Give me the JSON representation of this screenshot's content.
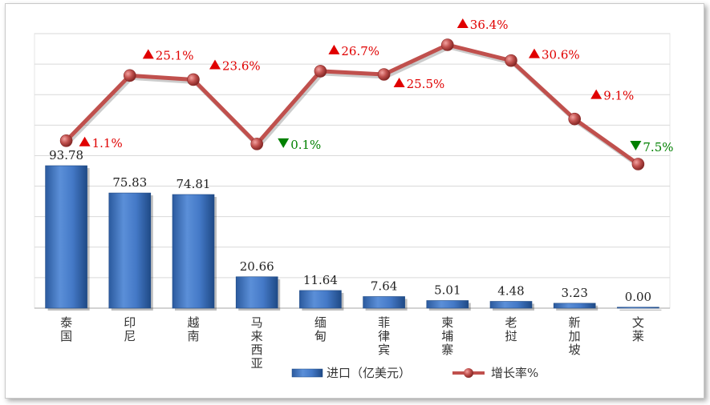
{
  "chart_data": {
    "type": "bar+line",
    "categories": [
      "泰国",
      "印尼",
      "越南",
      "马来西亚",
      "缅甸",
      "菲律宾",
      "柬埔寨",
      "老挝",
      "新加坡",
      "文莱"
    ],
    "series": [
      {
        "name": "进口（亿美元）",
        "type": "bar",
        "values": [
          93.78,
          75.83,
          74.81,
          20.66,
          11.64,
          7.64,
          5.01,
          4.48,
          3.23,
          0.0
        ],
        "labels": [
          "93.78",
          "75.83",
          "74.81",
          "20.66",
          "11.64",
          "7.64",
          "5.01",
          "4.48",
          "3.23",
          "0.00"
        ]
      },
      {
        "name": "增长率%",
        "type": "line",
        "values": [
          1.1,
          25.1,
          23.6,
          -0.1,
          26.7,
          25.5,
          36.4,
          30.6,
          9.1,
          -7.5
        ],
        "labels": [
          "1.1%",
          "25.1%",
          "23.6%",
          "0.1%",
          "26.7%",
          "25.5%",
          "36.4%",
          "30.6%",
          "9.1%",
          "7.5%"
        ],
        "direction": [
          "up",
          "up",
          "up",
          "down",
          "up",
          "up",
          "up",
          "up",
          "up",
          "down"
        ]
      }
    ],
    "bar_axis": {
      "ylim": [
        0,
        93.78
      ]
    },
    "line_axis": {
      "ylim": [
        -7.5,
        36.4
      ]
    },
    "grid": true,
    "legend_position": "bottom",
    "colors": {
      "bar": "#3d72c1",
      "line": "#c0504d",
      "up": "#e00000",
      "down": "#008000",
      "grid": "#d9d9d9"
    }
  }
}
